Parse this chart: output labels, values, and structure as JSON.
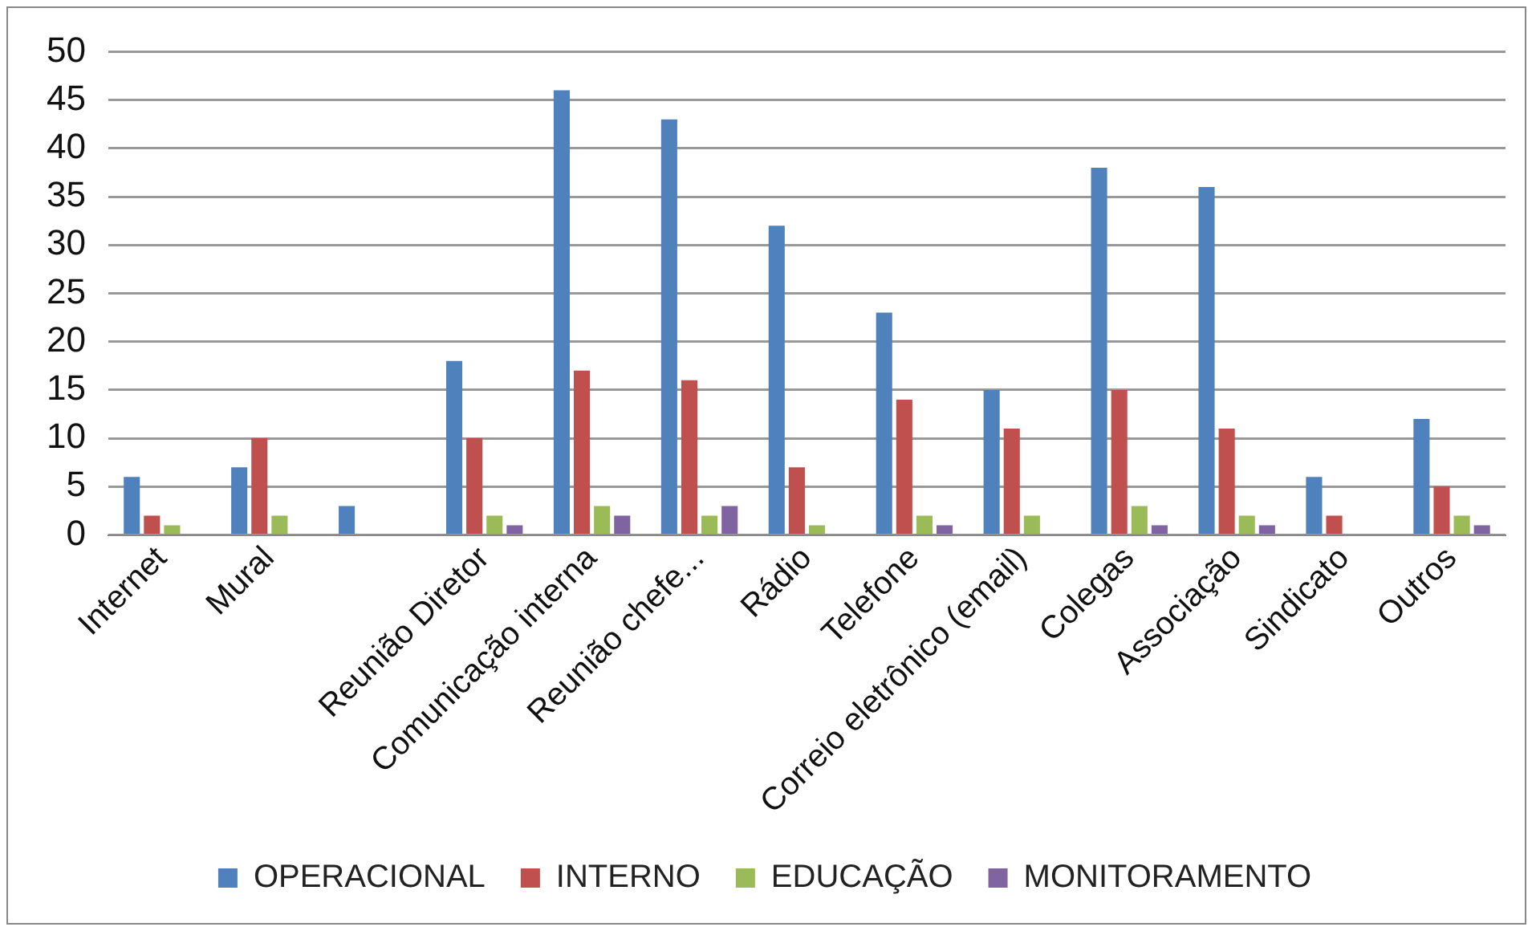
{
  "chart_data": {
    "type": "bar",
    "categories": [
      "Internet",
      "Mural",
      null,
      "Reunião Diretor",
      "Comunicação interna",
      "Reunião chefe...",
      "Rádio",
      "Telefone",
      "Correio eletrônico (email)",
      "Colegas",
      "Associação",
      "Sindicato",
      "Outros"
    ],
    "series": [
      {
        "name": "OPERACIONAL",
        "color": "#4f81bd",
        "values": [
          6,
          7,
          3,
          18,
          46,
          43,
          32,
          23,
          15,
          38,
          36,
          6,
          12
        ]
      },
      {
        "name": "INTERNO",
        "color": "#c0504d",
        "values": [
          2,
          10,
          0,
          10,
          17,
          16,
          7,
          14,
          11,
          15,
          11,
          2,
          5
        ]
      },
      {
        "name": "EDUCAÇÃO",
        "color": "#9bbb59",
        "values": [
          1,
          2,
          0,
          2,
          3,
          2,
          1,
          2,
          2,
          3,
          2,
          0,
          2
        ]
      },
      {
        "name": "MONITORAMENTO",
        "color": "#8064a2",
        "values": [
          0,
          0,
          0,
          1,
          2,
          3,
          0,
          1,
          0,
          1,
          1,
          0,
          1
        ]
      }
    ],
    "ylim": [
      0,
      50
    ],
    "yticks": [
      0,
      5,
      10,
      15,
      20,
      25,
      30,
      35,
      40,
      45,
      50
    ],
    "grid": "y",
    "legend": "bottom"
  }
}
